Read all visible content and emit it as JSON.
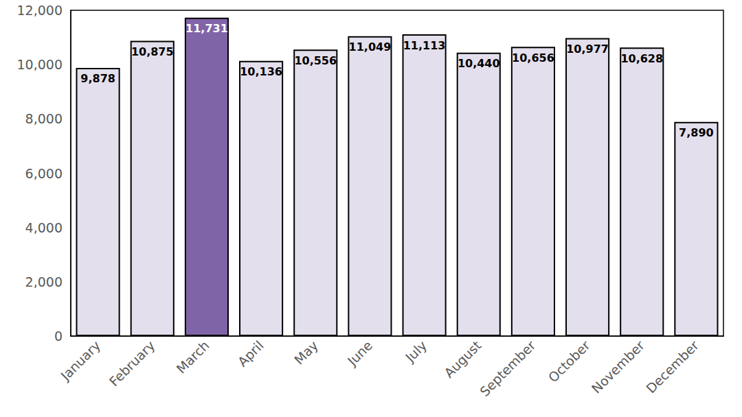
{
  "chart_data": {
    "type": "bar",
    "categories": [
      "January",
      "February",
      "March",
      "April",
      "May",
      "June",
      "July",
      "August",
      "September",
      "October",
      "November",
      "December"
    ],
    "values": [
      9878,
      10875,
      11731,
      10136,
      10556,
      11049,
      11113,
      10440,
      10656,
      10977,
      10628,
      7890
    ],
    "value_labels": [
      "9,878",
      "10,875",
      "11,731",
      "10,136",
      "10,556",
      "11,049",
      "11,113",
      "10,440",
      "10,656",
      "10,977",
      "10,628",
      "7,890"
    ],
    "colors": [
      "#e4dfec",
      "#e4dfec",
      "#8064a8",
      "#e4dfec",
      "#e4dfec",
      "#e4dfec",
      "#e4dfec",
      "#e4dfec",
      "#e4dfec",
      "#e4dfec",
      "#e4dfec",
      "#e4dfec"
    ],
    "ylim": [
      0,
      12000
    ],
    "yticks": [
      0,
      {
        "value": 2000,
        "label": "2,000"
      },
      {
        "value": 4000,
        "label": "4,000"
      },
      {
        "value": 6000,
        "label": "6,000"
      },
      {
        "value": 8000,
        "label": "8,000"
      },
      {
        "value": 10000,
        "label": "10,000"
      },
      {
        "value": 12000,
        "label": "12,000"
      }
    ],
    "grid": false,
    "data_labels": true
  }
}
